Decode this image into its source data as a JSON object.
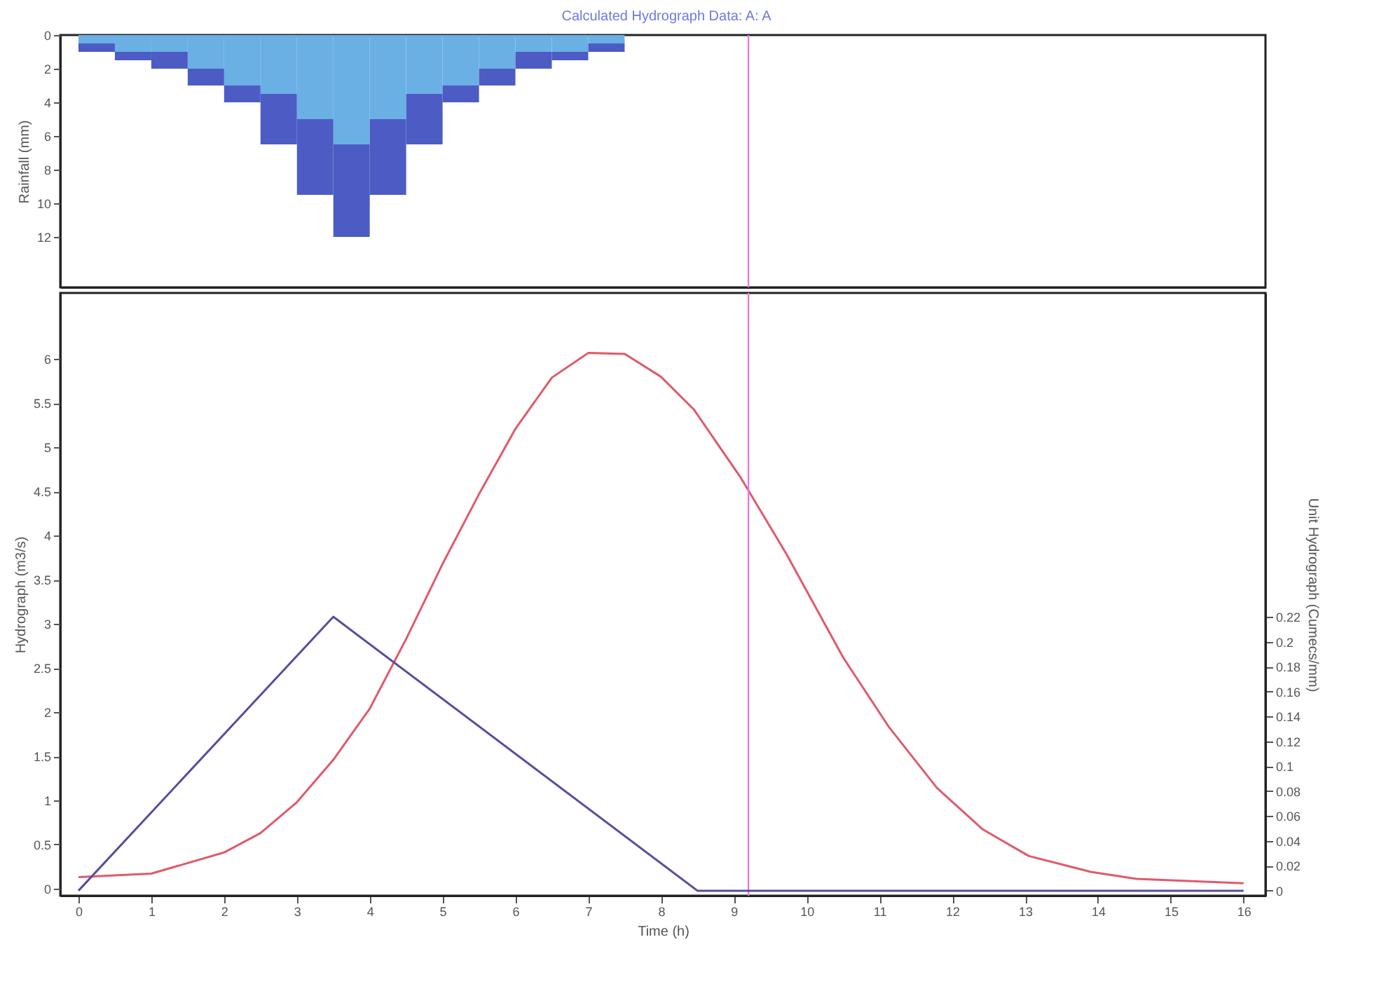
{
  "chart_data": [
    {
      "type": "bar",
      "title": "Calculated Hydrograph Data: A: A",
      "ylabel": "Rainfall (mm)",
      "stacked": true,
      "x": [
        0.25,
        0.75,
        1.25,
        1.75,
        2.25,
        2.75,
        3.25,
        3.75,
        4.25,
        4.75,
        5.25,
        5.75,
        6.25,
        6.75,
        7.25
      ],
      "series": [
        {
          "color": "#6ab0e4",
          "values": [
            0.5,
            1,
            1,
            2,
            3,
            3.5,
            5,
            6.5,
            5,
            3.5,
            3,
            2,
            1,
            1,
            0.5
          ]
        },
        {
          "color": "#4c5cc4",
          "values": [
            0.5,
            0.5,
            1,
            1,
            1,
            3,
            4.5,
            5.5,
            4.5,
            3,
            1,
            1,
            1,
            0.5,
            0.5
          ]
        }
      ],
      "xlim": [
        -0.25,
        16.3
      ],
      "ylim": [
        15,
        0
      ],
      "yticks": [
        0,
        2,
        4,
        6,
        8,
        10,
        12
      ],
      "tick_labels": "y",
      "grid": false,
      "legend": false,
      "ref_lines": [
        {
          "axis": "x",
          "value": 9.2,
          "color": "#e07ce0"
        }
      ]
    },
    {
      "type": "line",
      "xlabel": "Time (h)",
      "ylabel": "Hydrograph (m3/s)",
      "y2label": "Unit Hydrograph (Cumecs/mm)",
      "series": [
        {
          "color": "#e05a6a",
          "x": [
            0,
            1,
            2,
            2.5,
            3,
            3.5,
            4,
            4.5,
            5,
            5.5,
            6,
            6.5,
            7,
            7.5,
            8,
            8.45,
            9.1,
            9.73,
            10.5,
            11.13,
            11.79,
            12.42,
            13.05,
            13.9,
            14.53,
            16
          ],
          "values": [
            0.13,
            0.17,
            0.41,
            0.63,
            0.98,
            1.46,
            2.04,
            2.83,
            3.68,
            4.47,
            5.21,
            5.79,
            6.07,
            6.06,
            5.8,
            5.43,
            4.65,
            3.78,
            2.62,
            1.83,
            1.14,
            0.67,
            0.37,
            0.19,
            0.11,
            0.06
          ]
        },
        {
          "color": "#5a4c9c",
          "axis": "y2",
          "x": [
            0,
            3.5,
            8.5,
            16
          ],
          "values": [
            0,
            0.22,
            0,
            0
          ]
        }
      ],
      "xlim": [
        -0.25,
        16.3
      ],
      "xticks": [
        0,
        1,
        2,
        3,
        4,
        5,
        6,
        7,
        8,
        9,
        10,
        11,
        12,
        13,
        14,
        15,
        16
      ],
      "ylim": [
        -0.08,
        6.75
      ],
      "yticks": [
        0,
        0.5,
        1,
        1.5,
        2,
        2.5,
        3,
        3.5,
        4,
        4.5,
        5,
        5.5,
        6
      ],
      "y2lim": [
        -0.004,
        0.48
      ],
      "y2ticks": [
        0,
        0.02,
        0.04,
        0.06,
        0.08,
        0.1,
        0.12,
        0.14,
        0.16,
        0.18,
        0.2,
        0.22
      ],
      "grid": false,
      "marker": "none",
      "line_style": "solid",
      "ref_lines": [
        {
          "axis": "x",
          "value": 9.2,
          "color": "#e07ce0"
        }
      ]
    }
  ]
}
